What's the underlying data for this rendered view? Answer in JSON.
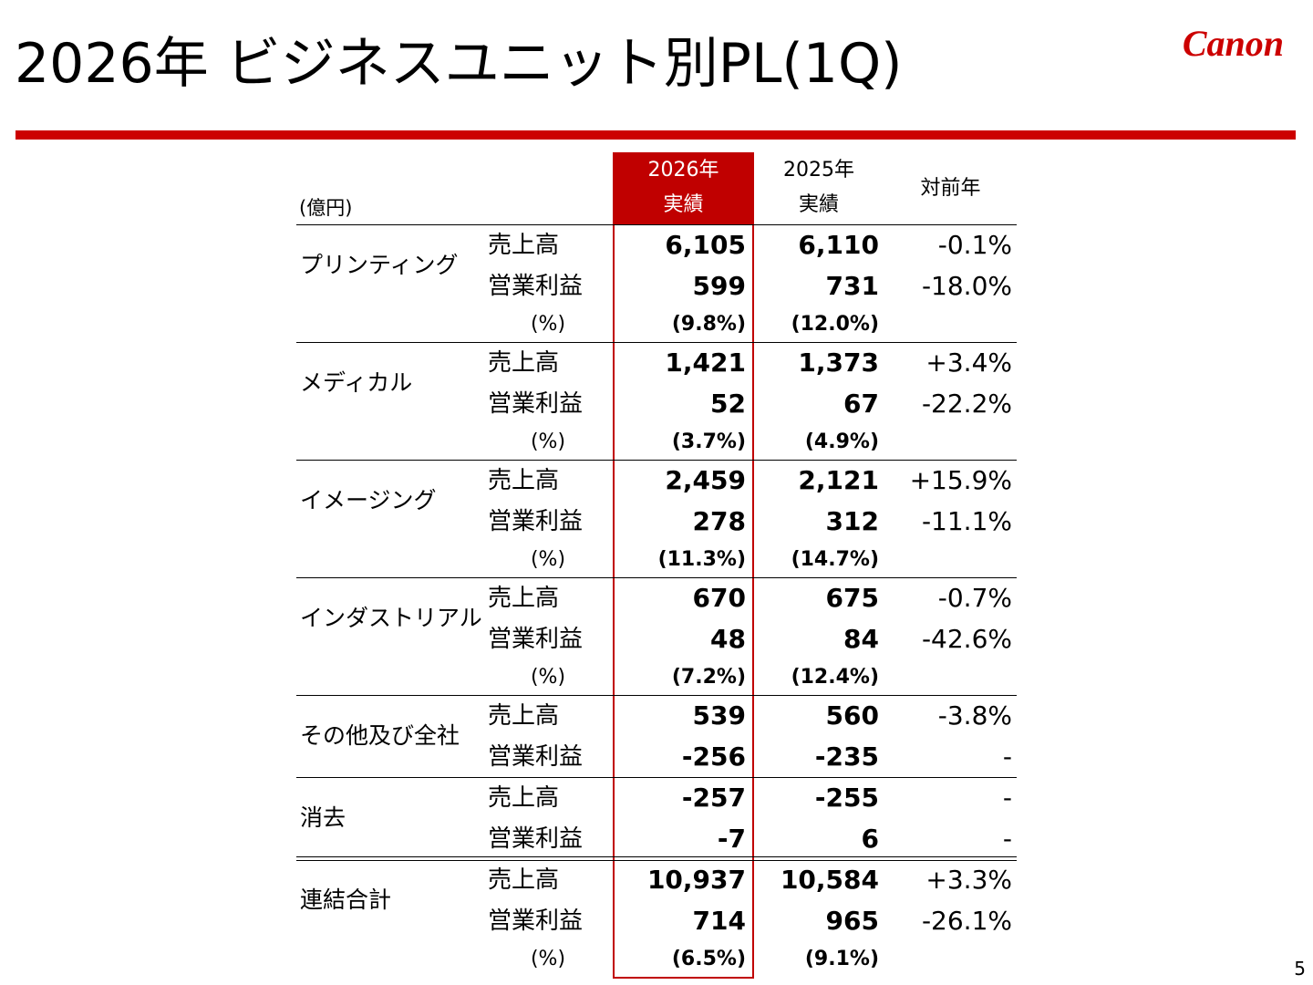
{
  "header": {
    "title": "2026年 ビジネスユニット別PL(1Q)",
    "logo": "Canon",
    "page": "5"
  },
  "table": {
    "unit": "(億円)",
    "columns": [
      [
        "2026年",
        "実績"
      ],
      [
        "2025年",
        "実績"
      ],
      [
        "対前年"
      ]
    ],
    "groups": [
      {
        "name": "プリンティング",
        "rows": [
          [
            "売上高",
            "6,105",
            "6,110",
            "-0.1%"
          ],
          [
            "営業利益",
            "599",
            "731",
            "-18.0%"
          ],
          [
            "(%)",
            "(9.8%)",
            "(12.0%)"
          ]
        ]
      },
      {
        "name": "メディカル",
        "rows": [
          [
            "売上高",
            "1,421",
            "1,373",
            "+3.4%"
          ],
          [
            "営業利益",
            "52",
            "67",
            "-22.2%"
          ],
          [
            "(%)",
            "(3.7%)",
            "(4.9%)"
          ]
        ]
      },
      {
        "name": "イメージング",
        "rows": [
          [
            "売上高",
            "2,459",
            "2,121",
            "+15.9%"
          ],
          [
            "営業利益",
            "278",
            "312",
            "-11.1%"
          ],
          [
            "(%)",
            "(11.3%)",
            "(14.7%)"
          ]
        ]
      },
      {
        "name": "インダストリアル",
        "rows": [
          [
            "売上高",
            "670",
            "675",
            "-0.7%"
          ],
          [
            "営業利益",
            "48",
            "84",
            "-42.6%"
          ],
          [
            "(%)",
            "(7.2%)",
            "(12.4%)"
          ]
        ]
      },
      {
        "name": "その他及び全社",
        "rows": [
          [
            "売上高",
            "539",
            "560",
            "-3.8%"
          ],
          [
            "営業利益",
            "-256",
            "-235",
            "-"
          ]
        ]
      },
      {
        "name": "消去",
        "rows": [
          [
            "売上高",
            "-257",
            "-255",
            "-"
          ],
          [
            "営業利益",
            "-7",
            "6",
            "-"
          ]
        ]
      },
      {
        "name": "連結合計",
        "rows": [
          [
            "売上高",
            "10,937",
            "10,584",
            "+3.3%"
          ],
          [
            "営業利益",
            "714",
            "965",
            "-26.1%"
          ],
          [
            "(%)",
            "(6.5%)",
            "(9.1%)"
          ]
        ]
      }
    ]
  }
}
